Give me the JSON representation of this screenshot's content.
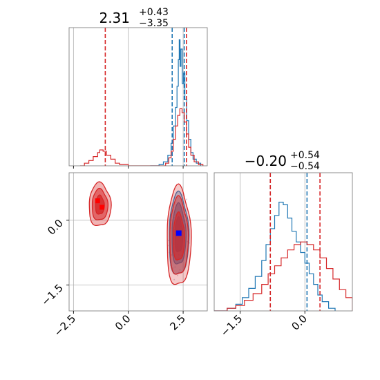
{
  "chart_data": {
    "type": "corner",
    "parameters": [
      {
        "title_value": "2.31",
        "title_upper": "+0.43",
        "title_lower": "−3.35",
        "range": [
          -2.7,
          3.6
        ],
        "ticks": [
          {
            "value": -2.5,
            "label": "−2.5"
          },
          {
            "value": 0.0,
            "label": "0.0"
          },
          {
            "value": 2.5,
            "label": "2.5"
          }
        ]
      },
      {
        "title_value": "−0.20",
        "title_upper": "+0.54",
        "title_lower": "−0.54",
        "range": [
          -2.1,
          1.1
        ],
        "ticks": [
          {
            "value": -1.5,
            "label": "−1.5"
          },
          {
            "value": 0.0,
            "label": "0.0"
          }
        ]
      }
    ],
    "grid": true,
    "series": [
      {
        "color": "#1f77b4",
        "hist_param1": [
          [
            1.0,
            0
          ],
          [
            1.2,
            0
          ],
          [
            1.4,
            0.01
          ],
          [
            1.6,
            0.03
          ],
          [
            1.8,
            0.08
          ],
          [
            1.95,
            0.17
          ],
          [
            2.05,
            0.3
          ],
          [
            2.15,
            0.44
          ],
          [
            2.22,
            0.6
          ],
          [
            2.28,
            0.8
          ],
          [
            2.32,
            0.95
          ],
          [
            2.36,
            0.75
          ],
          [
            2.4,
            0.88
          ],
          [
            2.46,
            0.62
          ],
          [
            2.52,
            0.7
          ],
          [
            2.58,
            0.5
          ],
          [
            2.66,
            0.34
          ],
          [
            2.75,
            0.2
          ],
          [
            2.85,
            0.1
          ],
          [
            2.95,
            0.05
          ],
          [
            3.1,
            0.02
          ],
          [
            3.3,
            0.0
          ]
        ],
        "quantiles_param1": [
          2.0,
          2.55
        ],
        "hist_param2": [
          [
            -2.1,
            0
          ],
          [
            -1.8,
            0.02
          ],
          [
            -1.6,
            0.05
          ],
          [
            -1.45,
            0.1
          ],
          [
            -1.3,
            0.17
          ],
          [
            -1.15,
            0.26
          ],
          [
            -1.0,
            0.38
          ],
          [
            -0.9,
            0.5
          ],
          [
            -0.8,
            0.62
          ],
          [
            -0.7,
            0.72
          ],
          [
            -0.6,
            0.82
          ],
          [
            -0.5,
            0.8
          ],
          [
            -0.4,
            0.7
          ],
          [
            -0.3,
            0.6
          ],
          [
            -0.2,
            0.52
          ],
          [
            -0.1,
            0.44
          ],
          [
            0.0,
            0.36
          ],
          [
            0.1,
            0.28
          ],
          [
            0.2,
            0.2
          ],
          [
            0.3,
            0.12
          ],
          [
            0.4,
            0.07
          ],
          [
            0.55,
            0.02
          ],
          [
            0.7,
            0.0
          ]
        ],
        "quantiles_param2": [
          -0.8,
          0.05
        ],
        "best_fit": [
          2.3,
          -0.3
        ],
        "contours": [
          {
            "center": [
              2.3,
              -0.35
            ],
            "radius": [
              0.45,
              0.95
            ],
            "fill_opacity": 0.35
          },
          {
            "center": [
              2.3,
              -0.35
            ],
            "radius": [
              0.32,
              0.7
            ],
            "fill_opacity": 0.55
          },
          {
            "center": [
              2.3,
              -0.35
            ],
            "radius": [
              0.18,
              0.4
            ],
            "fill_opacity": 0.8
          }
        ]
      },
      {
        "color": "#d62728",
        "hist_param1": [
          [
            -2.2,
            0
          ],
          [
            -2.0,
            0.02
          ],
          [
            -1.8,
            0.04
          ],
          [
            -1.6,
            0.07
          ],
          [
            -1.4,
            0.1
          ],
          [
            -1.3,
            0.12
          ],
          [
            -1.15,
            0.11
          ],
          [
            -1.0,
            0.08
          ],
          [
            -0.8,
            0.05
          ],
          [
            -0.6,
            0.02
          ],
          [
            -0.4,
            0.01
          ],
          [
            0.0,
            0
          ],
          [
            1.5,
            0
          ],
          [
            1.7,
            0.02
          ],
          [
            1.85,
            0.06
          ],
          [
            1.95,
            0.11
          ],
          [
            2.05,
            0.2
          ],
          [
            2.15,
            0.3
          ],
          [
            2.25,
            0.38
          ],
          [
            2.35,
            0.43
          ],
          [
            2.45,
            0.4
          ],
          [
            2.55,
            0.33
          ],
          [
            2.65,
            0.24
          ],
          [
            2.75,
            0.14
          ],
          [
            2.85,
            0.08
          ],
          [
            3.0,
            0.03
          ],
          [
            3.2,
            0.01
          ],
          [
            3.4,
            0.0
          ]
        ],
        "quantiles_param1": [
          -1.05,
          2.65
        ],
        "hist_param2": [
          [
            -2.1,
            0
          ],
          [
            -1.8,
            0.02
          ],
          [
            -1.6,
            0.04
          ],
          [
            -1.4,
            0.08
          ],
          [
            -1.2,
            0.13
          ],
          [
            -1.0,
            0.2
          ],
          [
            -0.85,
            0.28
          ],
          [
            -0.7,
            0.34
          ],
          [
            -0.55,
            0.4
          ],
          [
            -0.4,
            0.46
          ],
          [
            -0.25,
            0.5
          ],
          [
            -0.1,
            0.52
          ],
          [
            0.05,
            0.5
          ],
          [
            0.2,
            0.46
          ],
          [
            0.35,
            0.4
          ],
          [
            0.5,
            0.32
          ],
          [
            0.65,
            0.24
          ],
          [
            0.8,
            0.16
          ],
          [
            0.95,
            0.1
          ],
          [
            1.1,
            0.05
          ]
        ],
        "quantiles_param2": [
          -0.8,
          0.35
        ],
        "best_fit": [
          [
            -1.4,
            0.45
          ],
          [
            -1.2,
            0.3
          ]
        ],
        "contours": [
          {
            "center": [
              2.3,
              -0.4
            ],
            "radius": [
              0.55,
              1.15
            ],
            "fill_opacity": 0.25
          },
          {
            "center": [
              2.3,
              -0.4
            ],
            "radius": [
              0.42,
              0.9
            ],
            "fill_opacity": 0.4
          },
          {
            "center": [
              2.3,
              -0.4
            ],
            "radius": [
              0.26,
              0.55
            ],
            "fill_opacity": 0.6
          },
          {
            "center": [
              -1.3,
              0.35
            ],
            "radius": [
              0.5,
              0.5
            ],
            "fill_opacity": 0.35
          },
          {
            "center": [
              -1.3,
              0.35
            ],
            "radius": [
              0.36,
              0.36
            ],
            "fill_opacity": 0.55
          },
          {
            "center": [
              -1.3,
              0.35
            ],
            "radius": [
              0.2,
              0.22
            ],
            "fill_opacity": 0.8
          }
        ]
      }
    ]
  }
}
